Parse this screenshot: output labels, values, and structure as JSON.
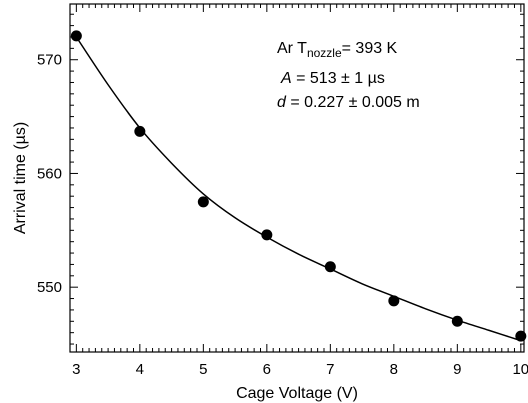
{
  "chart_data": {
    "type": "scatter",
    "xlabel": "Cage Voltage (V)",
    "ylabel": "Arrival time (µs)",
    "xlim": [
      2.9,
      10.05
    ],
    "ylim": [
      544.3,
      574.9
    ],
    "x_ticks": [
      3,
      4,
      5,
      6,
      7,
      8,
      9,
      10
    ],
    "y_ticks": [
      550,
      560,
      570
    ],
    "grid": false,
    "series": [
      {
        "points": [
          {
            "x": 3,
            "y": 572.1
          },
          {
            "x": 4,
            "y": 563.7
          },
          {
            "x": 5,
            "y": 557.5
          },
          {
            "x": 6,
            "y": 554.6
          },
          {
            "x": 7,
            "y": 551.8
          },
          {
            "x": 8,
            "y": 548.8
          },
          {
            "x": 9,
            "y": 547.0
          },
          {
            "x": 10,
            "y": 545.7
          }
        ]
      }
    ],
    "fit": {
      "type": "line",
      "x": [
        3,
        3.5,
        4,
        4.5,
        5,
        5.5,
        6,
        6.5,
        7,
        7.5,
        8,
        8.5,
        9,
        9.5,
        10
      ],
      "y": [
        572.0,
        567.8,
        564.0,
        560.9,
        558.2,
        556.1,
        554.4,
        552.9,
        551.6,
        550.3,
        549.2,
        548.1,
        547.1,
        546.2,
        545.3
      ]
    },
    "annotation": {
      "line1_prefix": "Ar T",
      "line1_sub": "nozzle",
      "line1_suffix": "= 393 K",
      "line2_var": "A",
      "line2_rest": " = 513 ± 1 µs",
      "line3_var": "d",
      "line3_rest": " = 0.227 ± 0.005 m"
    }
  }
}
